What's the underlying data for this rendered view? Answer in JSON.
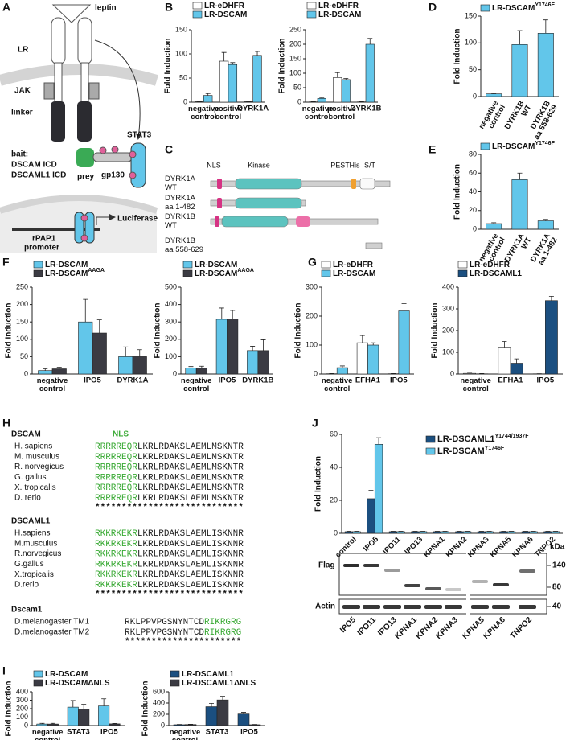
{
  "panel_labels": [
    "A",
    "B",
    "C",
    "D",
    "E",
    "F",
    "G",
    "H",
    "I",
    "J"
  ],
  "panel_a": {
    "leptin": "leptin",
    "receptor": "LR",
    "jak": "JAK",
    "linker": "linker",
    "bait": [
      "bait:",
      "DSCAM ICD",
      "DSCAML1 ICD"
    ],
    "prey": "prey",
    "gp130": "gp130",
    "stat3": "STAT3",
    "promoter": [
      "rPAP1",
      "promoter"
    ],
    "reporter": "Luciferase"
  },
  "panel_c": {
    "domains": [
      "NLS",
      "Kinase",
      "PEST",
      "His",
      "S/T"
    ],
    "constructs": [
      "DYRK1A\nWT",
      "DYRK1A\naa 1-482",
      "DYRK1B\nWT",
      "DYRK1B\naa 558-629"
    ]
  },
  "panel_h": {
    "motif": "NLS",
    "groups": [
      {
        "name": "DSCAM",
        "rows": [
          {
            "species": "H. sapiens",
            "segments": [
              {
                "text": "RRRRREQR",
                "nls": true
              },
              {
                "text": "LKRLRDAKSLAEMLMSKNTR",
                "nls": false
              }
            ]
          },
          {
            "species": "M. musculus",
            "segments": [
              {
                "text": "RRRRREQR",
                "nls": true
              },
              {
                "text": "LKRLRDAKSLAEMLMSKNTR",
                "nls": false
              }
            ]
          },
          {
            "species": "R. norvegicus",
            "segments": [
              {
                "text": "RRRRREQR",
                "nls": true
              },
              {
                "text": "LKRLRDAKSLAEMLMSKNTR",
                "nls": false
              }
            ]
          },
          {
            "species": "G. gallus",
            "segments": [
              {
                "text": "RRRRREQR",
                "nls": true
              },
              {
                "text": "LKRLRDAKSLAEMLMSKNTR",
                "nls": false
              }
            ]
          },
          {
            "species": "X. tropicalis",
            "segments": [
              {
                "text": "RRRRREQR",
                "nls": true
              },
              {
                "text": "LKRLRDAKSLAEMLMSKNTR",
                "nls": false
              }
            ]
          },
          {
            "species": "D. rerio",
            "segments": [
              {
                "text": "RRRRREQR",
                "nls": true
              },
              {
                "text": "LKRLRDAKSLAEMLMSKNTR",
                "nls": false
              }
            ]
          }
        ],
        "conservation": "****************************"
      },
      {
        "name": "DSCAML1",
        "rows": [
          {
            "species": "H.sapiens",
            "segments": [
              {
                "text": "RKKRKEKR",
                "nls": true
              },
              {
                "text": "LKRLRDAKSLAEMLISKNNR",
                "nls": false
              }
            ]
          },
          {
            "species": "M.musculus",
            "segments": [
              {
                "text": "RKKRKEKR",
                "nls": true
              },
              {
                "text": "LKRLRDAKSLAEMLISKNNR",
                "nls": false
              }
            ]
          },
          {
            "species": "R.norvegicus",
            "segments": [
              {
                "text": "RKKRKEKR",
                "nls": true
              },
              {
                "text": "LKRLRDAKSLAEMLISKNNR",
                "nls": false
              }
            ]
          },
          {
            "species": "G.gallus",
            "segments": [
              {
                "text": "RKKRKEKR",
                "nls": true
              },
              {
                "text": "LKRLRDAKSLAEMLISKNNR",
                "nls": false
              }
            ]
          },
          {
            "species": "X.tropicalis",
            "segments": [
              {
                "text": "RKKRKEKR",
                "nls": true
              },
              {
                "text": "LKRLRDAKSLAEMLISKNNR",
                "nls": false
              }
            ]
          },
          {
            "species": "D.rerio",
            "segments": [
              {
                "text": "RKKRKEKR",
                "nls": true
              },
              {
                "text": "LKRLRDAKSLAEMLISKNNR",
                "nls": false
              }
            ]
          }
        ],
        "conservation": "****************************"
      },
      {
        "name": "Dscam1",
        "rows": [
          {
            "species": "D.melanogaster TM1",
            "segments": [
              {
                "text": "RKLPPVPGSNYNTCD",
                "nls": false
              },
              {
                "text": "RIKRGRG",
                "nls": true
              }
            ]
          },
          {
            "species": "D.melanogaster TM2",
            "segments": [
              {
                "text": "RKLPPVPGSNYNTCD",
                "nls": false
              },
              {
                "text": "RIKRGRG",
                "nls": true
              }
            ]
          }
        ],
        "conservation": "**********************"
      }
    ]
  },
  "panel_j_blot": {
    "rows": [
      "Flag",
      "Actin"
    ],
    "unit": "kDa",
    "markers": [
      140,
      80,
      40
    ],
    "lanes": [
      "IPO5",
      "IPO11",
      "IPO13",
      "KPNA1",
      "KPNA2",
      "KPNA3",
      "KPNA5",
      "KPNA6",
      "TNPO2"
    ]
  },
  "chart_data": [
    {
      "type": "bar",
      "y_label": "Fold Induction",
      "categories": [
        "negative\ncontrol",
        "positive\ncontrol",
        "DYRK1A"
      ],
      "series": [
        {
          "name": "LR-eDHFR",
          "color": "#ffffff",
          "values": [
            1,
            85,
            1
          ],
          "errors": [
            0.5,
            18,
            0.5
          ]
        },
        {
          "name": "LR-DSCAM",
          "color": "#62c6ea",
          "values": [
            14,
            78,
            97
          ],
          "errors": [
            4,
            4,
            8
          ]
        }
      ],
      "ylim": [
        0,
        150
      ],
      "yticks": [
        0,
        50,
        100,
        150
      ]
    },
    {
      "type": "bar",
      "y_label": "Fold Induction",
      "categories": [
        "negative\ncontrol",
        "positive\ncontrol",
        "DYRK1B"
      ],
      "series": [
        {
          "name": "LR-eDHFR",
          "color": "#ffffff",
          "values": [
            1,
            85,
            1
          ],
          "errors": [
            0.5,
            17,
            0.5
          ]
        },
        {
          "name": "LR-DSCAM",
          "color": "#62c6ea",
          "values": [
            13,
            78,
            200
          ],
          "errors": [
            3,
            4,
            20
          ]
        }
      ],
      "ylim": [
        0,
        250
      ],
      "yticks": [
        0,
        50,
        100,
        150,
        200,
        250
      ]
    },
    {
      "type": "bar",
      "y_label": "Fold Induction",
      "categories": [
        "negative\ncontrol",
        "DYRK1B\nWT",
        "DYRK1B\naa 558-629"
      ],
      "series": [
        {
          "name": "LR-DSCAM",
          "name_sup": "Y1746F",
          "color": "#62c6ea",
          "values": [
            5,
            97,
            118
          ],
          "errors": [
            1,
            26,
            25
          ]
        }
      ],
      "ylim": [
        0,
        150
      ],
      "yticks": [
        0,
        50,
        100,
        150
      ]
    },
    {
      "type": "bar",
      "y_label": "Fold Induction",
      "categories": [
        "negative\ncontrol",
        "DYRK1A\nWT",
        "DYRK1A\naa 1-482"
      ],
      "series": [
        {
          "name": "LR-DSCAM",
          "name_sup": "Y1746F",
          "color": "#62c6ea",
          "values": [
            6,
            53,
            9
          ],
          "errors": [
            1,
            7,
            1.5
          ]
        }
      ],
      "ylim": [
        0,
        80
      ],
      "yticks": [
        0,
        20,
        40,
        60,
        80
      ],
      "reference_line": 10
    },
    {
      "type": "bar",
      "y_label": "Fold Induction",
      "categories": [
        "negative\ncontrol",
        "IPO5",
        "DYRK1A"
      ],
      "series": [
        {
          "name": "LR-DSCAM",
          "color": "#62c6ea",
          "values": [
            10,
            150,
            50
          ],
          "errors": [
            5,
            65,
            28
          ]
        },
        {
          "name": "LR-DSCAM",
          "name_sup": "AAGA",
          "color": "#3b3b43",
          "values": [
            15,
            118,
            50
          ],
          "errors": [
            5,
            38,
            20
          ]
        }
      ],
      "ylim": [
        0,
        250
      ],
      "yticks": [
        0,
        50,
        100,
        150,
        200,
        250
      ]
    },
    {
      "type": "bar",
      "y_label": "Fold Induction",
      "categories": [
        "negative\ncontrol",
        "IPO5",
        "DYRK1B"
      ],
      "series": [
        {
          "name": "LR-DSCAM",
          "color": "#62c6ea",
          "values": [
            35,
            315,
            135
          ],
          "errors": [
            8,
            65,
            25
          ]
        },
        {
          "name": "LR-DSCAM",
          "name_sup": "AAGA",
          "color": "#3b3b43",
          "values": [
            35,
            318,
            135
          ],
          "errors": [
            10,
            48,
            62
          ]
        }
      ],
      "ylim": [
        0,
        500
      ],
      "yticks": [
        0,
        100,
        200,
        300,
        400,
        500
      ]
    },
    {
      "type": "bar",
      "y_label": "Fold Induction",
      "categories": [
        "negative\ncontrol",
        "EFHA1",
        "IPO5"
      ],
      "series": [
        {
          "name": "LR-eDHFR",
          "color": "#ffffff",
          "values": [
            1,
            108,
            1
          ],
          "errors": [
            0.5,
            25,
            0.5
          ]
        },
        {
          "name": "LR-DSCAM",
          "color": "#62c6ea",
          "values": [
            22,
            100,
            218
          ],
          "errors": [
            6,
            8,
            25
          ]
        }
      ],
      "ylim": [
        0,
        300
      ],
      "yticks": [
        0,
        100,
        200,
        300
      ]
    },
    {
      "type": "bar",
      "y_label": "Fold Induction",
      "categories": [
        "negative\ncontrol",
        "EFHA1",
        "IPO5"
      ],
      "series": [
        {
          "name": "LR-eDHFR",
          "color": "#ffffff",
          "values": [
            3,
            120,
            1
          ],
          "errors": [
            1,
            30,
            0.5
          ]
        },
        {
          "name": "LR-DSCAML1",
          "color": "#1b4f80",
          "values": [
            1,
            50,
            338
          ],
          "errors": [
            1,
            20,
            20
          ]
        }
      ],
      "ylim": [
        0,
        400
      ],
      "yticks": [
        0,
        100,
        200,
        300,
        400
      ]
    },
    {
      "type": "bar",
      "y_label": "Fold Induction",
      "categories": [
        "negative\ncontrol",
        "STAT3",
        "IPO5"
      ],
      "series": [
        {
          "name": "LR-DSCAM",
          "color": "#62c6ea",
          "values": [
            18,
            218,
            232
          ],
          "errors": [
            8,
            78,
            85
          ]
        },
        {
          "name": "LR-DSCAMΔNLS",
          "color": "#3b3b43",
          "values": [
            18,
            196,
            20
          ],
          "errors": [
            8,
            55,
            5
          ]
        }
      ],
      "ylim": [
        0,
        400
      ],
      "yticks": [
        0,
        100,
        200,
        300,
        400
      ]
    },
    {
      "type": "bar",
      "y_label": "Fold Induction",
      "categories": [
        "negative\ncontrol",
        "STAT3",
        "IPO5"
      ],
      "series": [
        {
          "name": "LR-DSCAML1",
          "color": "#1b4f80",
          "values": [
            15,
            335,
            205
          ],
          "errors": [
            5,
            60,
            30
          ]
        },
        {
          "name": "LR-DSCAML1ΔNLS",
          "color": "#3b3b43",
          "values": [
            18,
            455,
            15
          ],
          "errors": [
            5,
            65,
            5
          ]
        }
      ],
      "ylim": [
        0,
        600
      ],
      "yticks": [
        0,
        200,
        400,
        600
      ]
    },
    {
      "type": "bar",
      "y_label": "Fold Induction",
      "categories": [
        "control",
        "IPO5",
        "IPO11",
        "IPO13",
        "KPNA1",
        "KPNA2",
        "KPNA3",
        "KPNA5",
        "KPNA6",
        "TNPO2"
      ],
      "series": [
        {
          "name": "LR-DSCAML1",
          "name_sup": "Y1744/1937F",
          "color": "#1b4f80",
          "values": [
            1,
            21,
            1,
            1,
            1,
            1,
            1,
            1,
            1,
            1
          ],
          "errors": [
            0.2,
            5,
            0.2,
            0.2,
            0.2,
            0.2,
            0.2,
            0.2,
            0.2,
            0.2
          ]
        },
        {
          "name": "LR-DSCAM",
          "name_sup": "Y1746F",
          "color": "#62c6ea",
          "values": [
            1,
            54,
            1,
            1,
            1,
            1,
            1,
            1,
            1,
            1
          ],
          "errors": [
            0.2,
            4,
            0.2,
            0.2,
            0.2,
            0.2,
            0.2,
            0.2,
            0.2,
            0.2
          ]
        }
      ],
      "ylim": [
        0,
        60
      ],
      "yticks": [
        0,
        20,
        40,
        60
      ]
    }
  ]
}
